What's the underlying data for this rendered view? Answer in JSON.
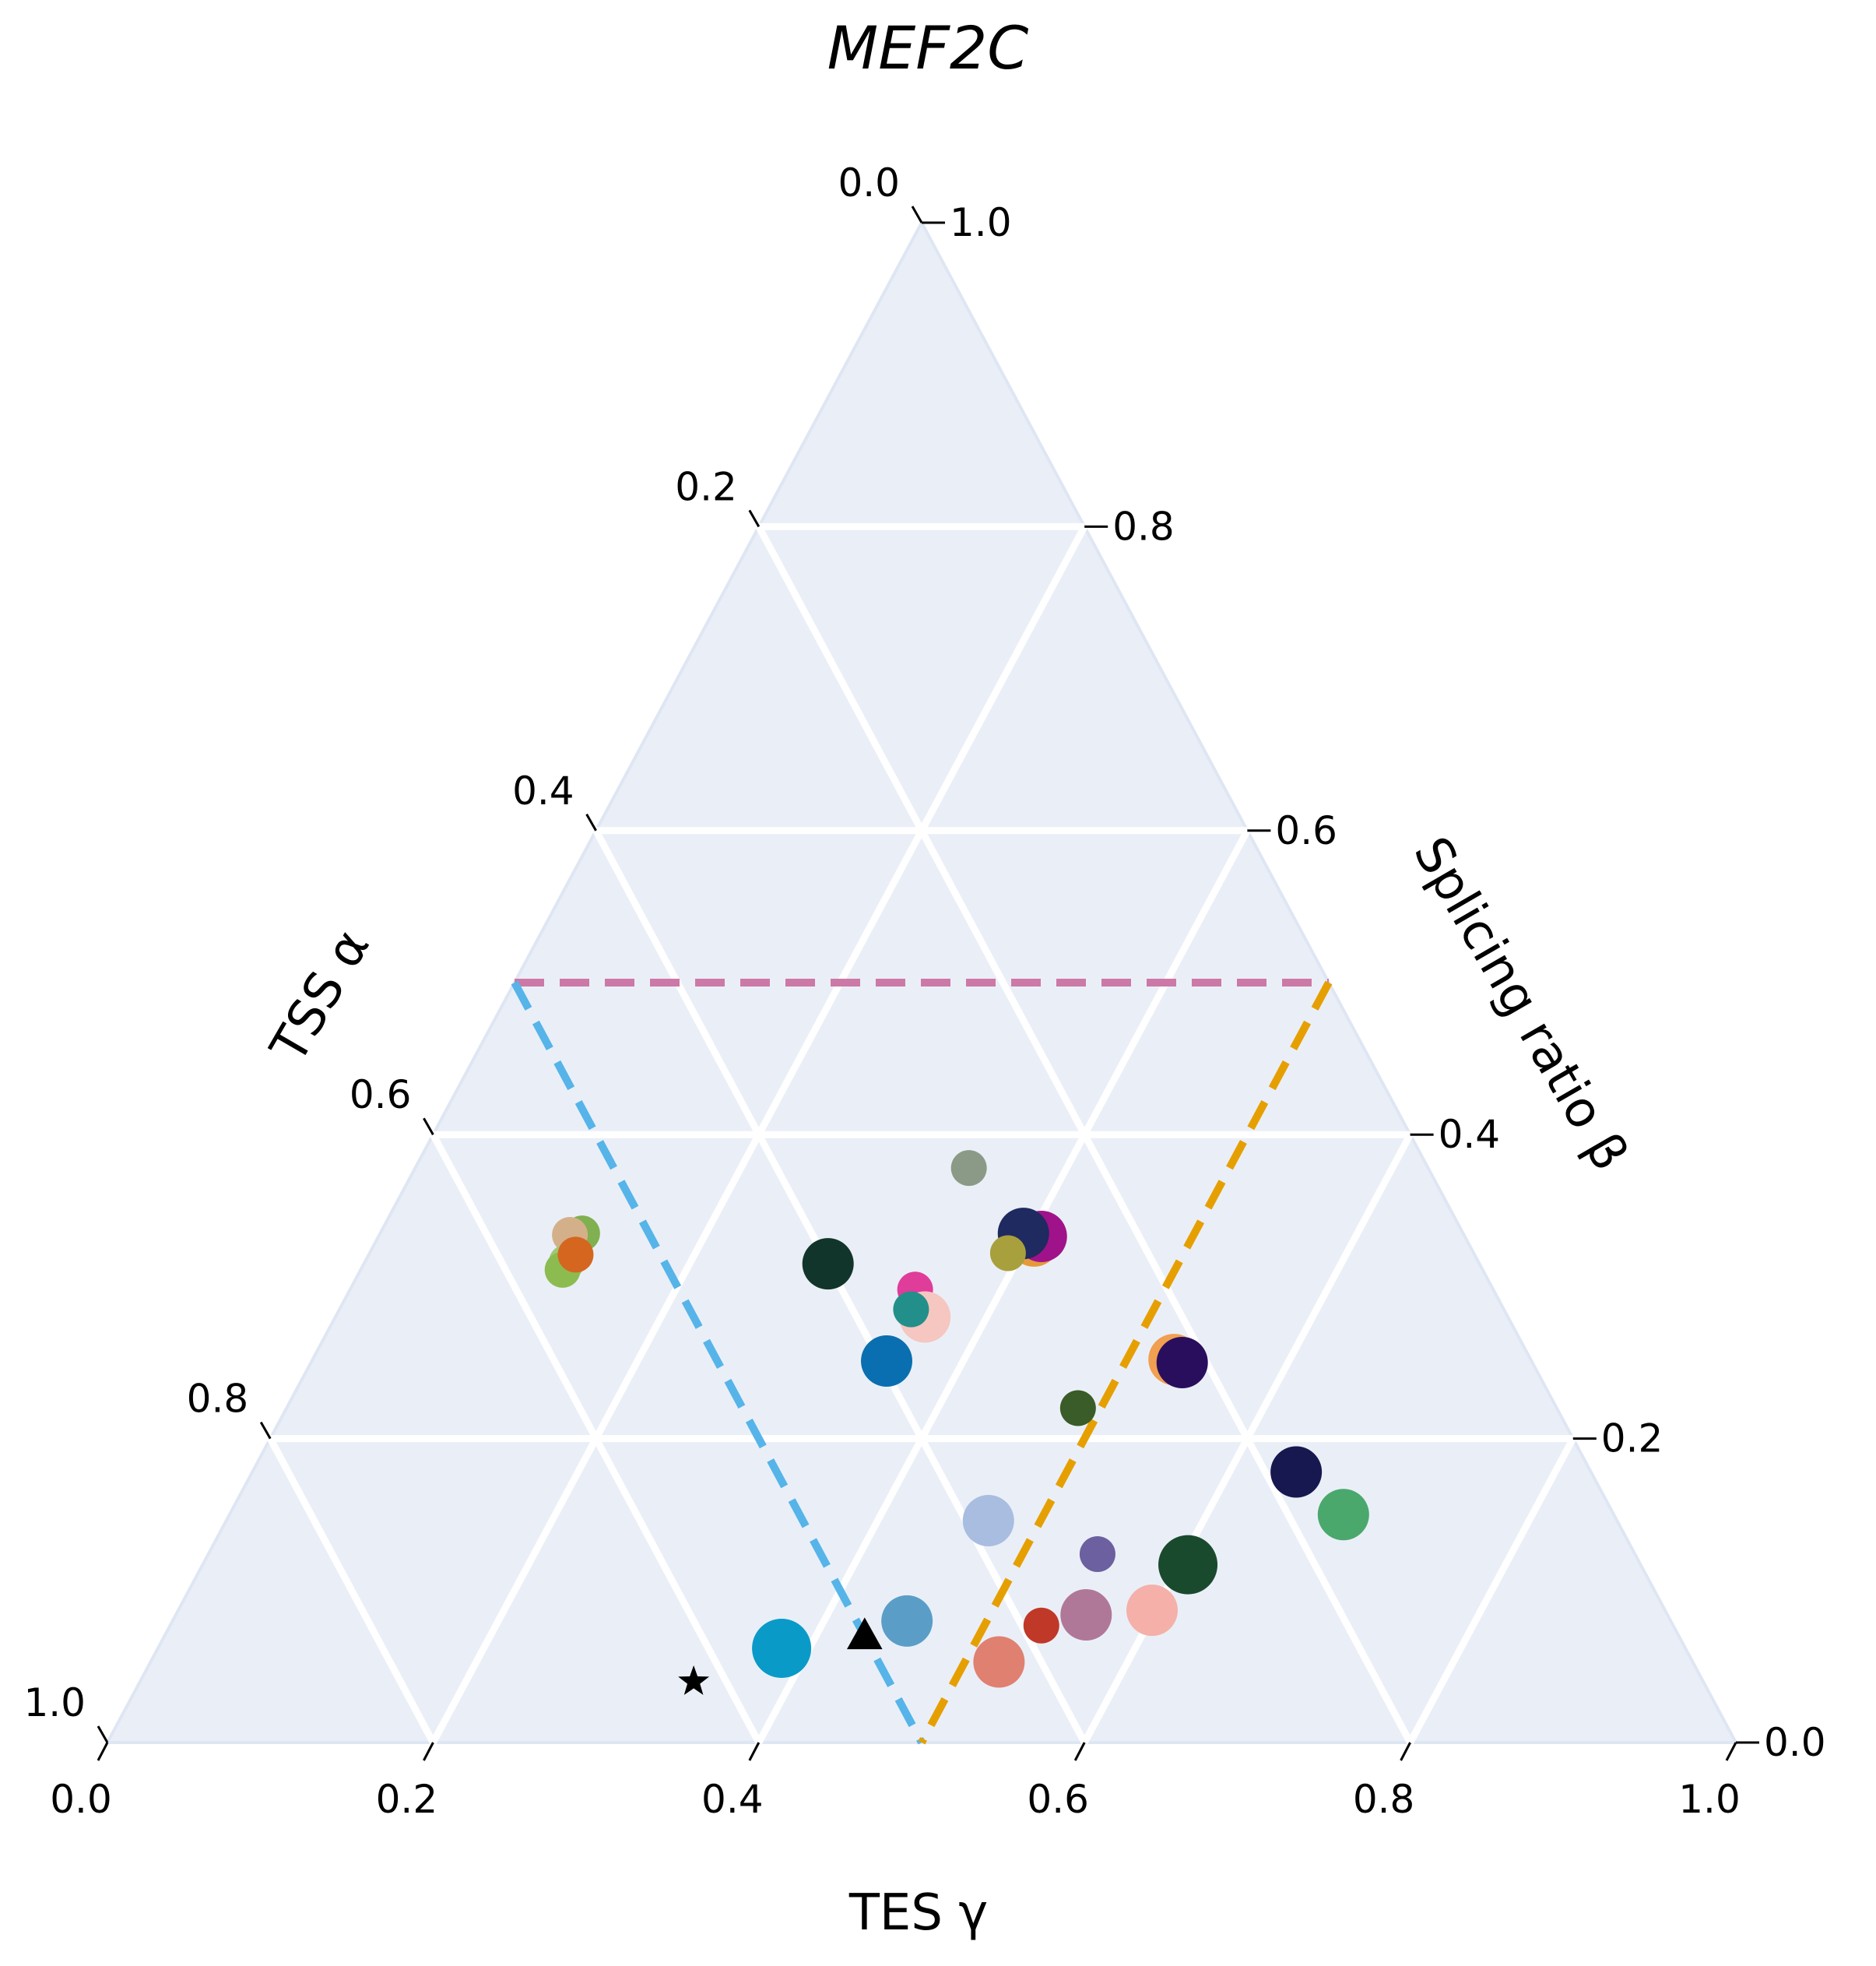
{
  "chart_data": {
    "type": "scatter",
    "subtype": "ternary",
    "title": "MEF2C",
    "axes": {
      "tss": {
        "label": "TSS α",
        "ticks": [
          "0.0",
          "0.2",
          "0.4",
          "0.6",
          "0.8",
          "1.0"
        ]
      },
      "splicing": {
        "label": "Splicing ratio β",
        "ticks": [
          "0.0",
          "0.2",
          "0.4",
          "0.6",
          "0.8",
          "1.0"
        ]
      },
      "tes": {
        "label": "TES γ",
        "ticks": [
          "0.0",
          "0.2",
          "0.4",
          "0.6",
          "0.8",
          "1.0"
        ]
      }
    },
    "range": [
      0,
      1
    ],
    "grid": true,
    "grid_step": 0.2,
    "background_color": "#eaeff7",
    "grid_color": "#ffffff",
    "reference_lines": [
      {
        "color": "#cc79a7",
        "style": "dashed",
        "points": [
          [
            0.5,
            0.5,
            0.0
          ],
          [
            0.0,
            0.5,
            0.5
          ]
        ]
      },
      {
        "color": "#56b4e9",
        "style": "dashed",
        "points": [
          [
            0.5,
            0.5,
            0.0
          ],
          [
            0.5,
            0.0,
            0.5
          ]
        ]
      },
      {
        "color": "#e69f00",
        "style": "dashed",
        "points": [
          [
            0.0,
            0.5,
            0.5
          ],
          [
            0.5,
            0.0,
            0.5
          ]
        ]
      }
    ],
    "markers": [
      {
        "shape": "star",
        "color": "#000000",
        "tss": 0.62,
        "splicing": 0.04,
        "tes": 0.34
      },
      {
        "shape": "triangle",
        "color": "#000000",
        "tss": 0.5,
        "splicing": 0.07,
        "tes": 0.43
      }
    ],
    "points": [
      {
        "tss": 0.282,
        "splicing": 0.378,
        "tes": 0.34,
        "size": "small",
        "color": "#8a9a87"
      },
      {
        "tss": 0.541,
        "splicing": 0.335,
        "tes": 0.124,
        "size": "small",
        "color": "#80b04f"
      },
      {
        "tss": 0.549,
        "splicing": 0.334,
        "tes": 0.117,
        "size": "small",
        "color": "#d4b08a"
      },
      {
        "tss": 0.56,
        "splicing": 0.316,
        "tes": 0.124,
        "size": "small",
        "color": "#a0c878"
      },
      {
        "tss": 0.565,
        "splicing": 0.311,
        "tes": 0.124,
        "size": "small",
        "color": "#8cbc50"
      },
      {
        "tss": 0.552,
        "splicing": 0.321,
        "tes": 0.127,
        "size": "small",
        "color": "#d5661f"
      },
      {
        "tss": 0.4,
        "splicing": 0.315,
        "tes": 0.285,
        "size": "medium",
        "color": "#11352a"
      },
      {
        "tss": 0.396,
        "splicing": 0.251,
        "tes": 0.353,
        "size": "medium",
        "color": "#0a6fb0"
      },
      {
        "tss": 0.355,
        "splicing": 0.298,
        "tes": 0.347,
        "size": "small",
        "color": "#e03c9a"
      },
      {
        "tss": 0.358,
        "splicing": 0.28,
        "tes": 0.362,
        "size": "medium",
        "color": "#f5c7c0"
      },
      {
        "tss": 0.364,
        "splicing": 0.285,
        "tes": 0.351,
        "size": "small",
        "color": "#238f8a"
      },
      {
        "tss": 0.266,
        "splicing": 0.33,
        "tes": 0.404,
        "size": "medium",
        "color": "#e59a3a"
      },
      {
        "tss": 0.26,
        "splicing": 0.333,
        "tes": 0.407,
        "size": "medium",
        "color": "#a0128a"
      },
      {
        "tss": 0.27,
        "splicing": 0.335,
        "tes": 0.395,
        "size": "medium",
        "color": "#1f2a60"
      },
      {
        "tss": 0.286,
        "splicing": 0.322,
        "tes": 0.392,
        "size": "small",
        "color": "#a8a03c"
      },
      {
        "tss": 0.219,
        "splicing": 0.252,
        "tes": 0.529,
        "size": "medium",
        "color": "#f0a050"
      },
      {
        "tss": 0.215,
        "splicing": 0.25,
        "tes": 0.535,
        "size": "medium",
        "color": "#2a0e5e"
      },
      {
        "tss": 0.294,
        "splicing": 0.22,
        "tes": 0.486,
        "size": "small",
        "color": "#3a5c28"
      },
      {
        "tss": 0.181,
        "splicing": 0.178,
        "tes": 0.641,
        "size": "medium",
        "color": "#181850"
      },
      {
        "tss": 0.166,
        "splicing": 0.15,
        "tes": 0.684,
        "size": "medium",
        "color": "#4aa86c"
      },
      {
        "tss": 0.386,
        "splicing": 0.146,
        "tes": 0.468,
        "size": "medium",
        "color": "#a8bde0"
      },
      {
        "tss": 0.33,
        "splicing": 0.124,
        "tes": 0.546,
        "size": "small",
        "color": "#6c60a0"
      },
      {
        "tss": 0.278,
        "splicing": 0.117,
        "tes": 0.605,
        "size": "large",
        "color": "#1a4a2e"
      },
      {
        "tss": 0.469,
        "splicing": 0.08,
        "tes": 0.451,
        "size": "medium",
        "color": "#5a9ec8"
      },
      {
        "tss": 0.388,
        "splicing": 0.077,
        "tes": 0.535,
        "size": "small",
        "color": "#c03828"
      },
      {
        "tss": 0.357,
        "splicing": 0.084,
        "tes": 0.559,
        "size": "medium",
        "color": "#b07898"
      },
      {
        "tss": 0.315,
        "splicing": 0.087,
        "tes": 0.598,
        "size": "medium",
        "color": "#f5b0aa"
      },
      {
        "tss": 0.555,
        "splicing": 0.062,
        "tes": 0.383,
        "size": "large",
        "color": "#0a9ac8"
      },
      {
        "tss": 0.426,
        "splicing": 0.053,
        "tes": 0.521,
        "size": "medium",
        "color": "#e08070"
      }
    ]
  }
}
